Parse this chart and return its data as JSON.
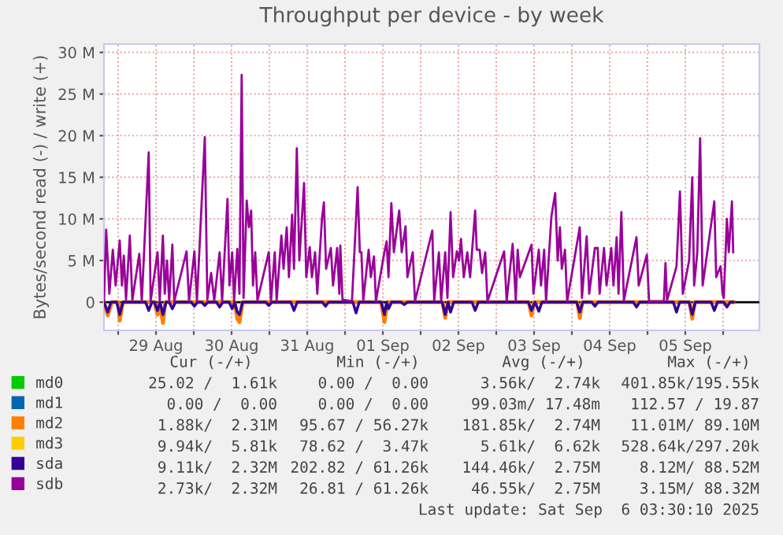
{
  "chart_data": {
    "type": "line",
    "title": "Throughput per device - by week",
    "ylabel": "Bytes/second read (-) / write (+)",
    "xlim": [
      "2025-08-28T19:30",
      "2025-09-06T11:30"
    ],
    "ylim": [
      -3.4,
      31
    ],
    "xticks": [
      {
        "value": "2025-08-29T00:00",
        "label": null
      },
      {
        "value": "2025-08-29T12:00",
        "label": "29 Aug"
      },
      {
        "value": "2025-08-30T00:00",
        "label": null
      },
      {
        "value": "2025-08-30T12:00",
        "label": "30 Aug"
      },
      {
        "value": "2025-08-31T00:00",
        "label": null
      },
      {
        "value": "2025-08-31T12:00",
        "label": "31 Aug"
      },
      {
        "value": "2025-09-01T00:00",
        "label": null
      },
      {
        "value": "2025-09-01T12:00",
        "label": "01 Sep"
      },
      {
        "value": "2025-09-02T00:00",
        "label": null
      },
      {
        "value": "2025-09-02T12:00",
        "label": "02 Sep"
      },
      {
        "value": "2025-09-03T00:00",
        "label": null
      },
      {
        "value": "2025-09-03T12:00",
        "label": "03 Sep"
      },
      {
        "value": "2025-09-04T00:00",
        "label": null
      },
      {
        "value": "2025-09-04T12:00",
        "label": "04 Sep"
      },
      {
        "value": "2025-09-05T00:00",
        "label": null
      },
      {
        "value": "2025-09-05T12:00",
        "label": "05 Sep"
      },
      {
        "value": "2025-09-06T00:00",
        "label": null
      }
    ],
    "yticks": [
      {
        "value": 0,
        "label": "0"
      },
      {
        "value": 5,
        "label": "5 M"
      },
      {
        "value": 10,
        "label": "10 M"
      },
      {
        "value": 15,
        "label": "15 M"
      },
      {
        "value": 20,
        "label": "20 M"
      },
      {
        "value": 25,
        "label": "25 M"
      },
      {
        "value": 30,
        "label": "30 M"
      }
    ],
    "grid": true,
    "legend": "bottom left",
    "line_style": "solid",
    "marker": "none",
    "series": [
      {
        "name": "md0",
        "color": "#00cc00"
      },
      {
        "name": "md1",
        "color": "#0066b3"
      },
      {
        "name": "md2",
        "color": "#ff8000",
        "x": [
          "2025-08-28T19:30",
          "2025-08-28T20:42",
          "2025-08-28T22:00",
          "2025-08-29T00:00",
          "2025-08-29T00:30",
          "2025-08-29T01:30",
          "2025-08-29T11:30",
          "2025-08-29T12:30",
          "2025-08-29T13:12",
          "2025-08-29T14:12",
          "2025-08-29T15:00",
          "2025-08-30T13:00",
          "2025-08-30T13:48",
          "2025-08-30T14:30",
          "2025-08-30T15:30",
          "2025-09-01T11:30",
          "2025-09-01T12:30",
          "2025-09-01T13:30",
          "2025-09-02T07:00",
          "2025-09-02T07:48",
          "2025-09-02T08:42",
          "2025-09-03T10:18",
          "2025-09-03T11:12",
          "2025-09-03T12:00",
          "2025-09-04T01:42",
          "2025-09-04T02:30",
          "2025-09-04T03:18",
          "2025-09-05T13:18",
          "2025-09-05T14:12",
          "2025-09-05T15:00",
          "2025-09-06T03:12"
        ],
        "values": [
          0,
          -1.6,
          0,
          0,
          -2.2,
          0,
          0,
          -1.5,
          0,
          -2.5,
          0,
          0,
          -2.0,
          -2.4,
          0,
          0,
          -2.4,
          0,
          0,
          -1.9,
          0,
          0,
          -1.6,
          0,
          0,
          -1.9,
          0,
          0,
          -2.0,
          0,
          0
        ]
      },
      {
        "name": "md3",
        "color": "#ffcc00"
      },
      {
        "name": "sda",
        "color": "#330099",
        "x": [
          "2025-08-28T19:30",
          "2025-08-28T20:42",
          "2025-08-28T21:42",
          "2025-08-28T23:30",
          "2025-08-29T00:30",
          "2025-08-29T01:30",
          "2025-08-29T08:42",
          "2025-08-29T09:42",
          "2025-08-29T10:42",
          "2025-08-29T11:30",
          "2025-08-29T12:30",
          "2025-08-29T13:18",
          "2025-08-29T14:12",
          "2025-08-29T15:12",
          "2025-08-29T16:12",
          "2025-08-29T17:12",
          "2025-08-29T18:12",
          "2025-08-29T23:12",
          "2025-08-30T00:12",
          "2025-08-30T01:12",
          "2025-08-30T02:30",
          "2025-08-30T03:30",
          "2025-08-30T04:30",
          "2025-08-30T07:12",
          "2025-08-30T08:12",
          "2025-08-30T09:12",
          "2025-08-30T11:12",
          "2025-08-30T12:12",
          "2025-08-30T13:00",
          "2025-08-30T13:48",
          "2025-08-30T14:30",
          "2025-08-30T15:30",
          "2025-08-30T22:48",
          "2025-08-30T23:48",
          "2025-08-31T00:48",
          "2025-08-31T06:48",
          "2025-08-31T07:48",
          "2025-08-31T08:48",
          "2025-08-31T16:48",
          "2025-08-31T17:48",
          "2025-08-31T18:48",
          "2025-09-01T02:30",
          "2025-09-01T03:30",
          "2025-09-01T04:30",
          "2025-09-01T11:30",
          "2025-09-01T12:30",
          "2025-09-01T13:12",
          "2025-09-01T13:48",
          "2025-09-01T14:48",
          "2025-09-01T17:48",
          "2025-09-01T18:48",
          "2025-09-01T19:48",
          "2025-09-02T06:48",
          "2025-09-02T07:48",
          "2025-09-02T08:42",
          "2025-09-02T09:30",
          "2025-09-02T10:30",
          "2025-09-02T16:18",
          "2025-09-02T17:18",
          "2025-09-02T18:18",
          "2025-09-03T10:12",
          "2025-09-03T11:12",
          "2025-09-03T12:18",
          "2025-09-03T13:30",
          "2025-09-03T14:30",
          "2025-09-04T01:30",
          "2025-09-04T02:30",
          "2025-09-04T03:30",
          "2025-09-04T06:18",
          "2025-09-04T07:18",
          "2025-09-04T08:18",
          "2025-09-04T19:30",
          "2025-09-04T20:30",
          "2025-09-04T21:30",
          "2025-09-05T08:12",
          "2025-09-05T09:12",
          "2025-09-05T10:12",
          "2025-09-05T13:12",
          "2025-09-05T14:12",
          "2025-09-05T15:12",
          "2025-09-05T20:12",
          "2025-09-05T21:12",
          "2025-09-05T22:12",
          "2025-09-06T00:12",
          "2025-09-06T01:12",
          "2025-09-06T02:12",
          "2025-09-06T03:12"
        ],
        "values": [
          0,
          -1.2,
          0,
          0,
          -1.5,
          0,
          0,
          -1.0,
          0,
          0,
          -1.0,
          0,
          -1.5,
          0,
          0,
          -0.8,
          0,
          0,
          -0.5,
          0,
          0,
          -0.4,
          0,
          0,
          -0.6,
          0,
          0,
          -0.8,
          0,
          -1.2,
          -1.5,
          0,
          0,
          -0.4,
          0,
          0,
          -1.0,
          0,
          0,
          -0.5,
          0,
          0,
          -1.3,
          0,
          0,
          -1.5,
          0,
          -0.8,
          0,
          0,
          -0.3,
          0,
          0,
          -1.5,
          0,
          -1.2,
          0,
          0,
          -1.0,
          0,
          0,
          -1.0,
          0,
          -1.1,
          0,
          0,
          -1.2,
          0,
          0,
          -0.5,
          0,
          0,
          -0.6,
          0,
          0,
          -1.2,
          0,
          0,
          -1.5,
          0,
          0,
          -1.0,
          0,
          0,
          -0.6,
          0,
          0
        ]
      },
      {
        "name": "sdb",
        "color": "#990099",
        "x": [
          "2025-08-28T19:30",
          "2025-08-28T20:12",
          "2025-08-28T21:12",
          "2025-08-28T22:18",
          "2025-08-28T23:12",
          "2025-08-29T00:30",
          "2025-08-29T01:12",
          "2025-08-29T01:48",
          "2025-08-29T02:30",
          "2025-08-29T03:42",
          "2025-08-29T04:30",
          "2025-08-29T06:42",
          "2025-08-29T07:30",
          "2025-08-29T09:42",
          "2025-08-29T10:18",
          "2025-08-29T12:30",
          "2025-08-29T13:12",
          "2025-08-29T14:12",
          "2025-08-29T14:48",
          "2025-08-29T15:30",
          "2025-08-29T16:12",
          "2025-08-29T17:12",
          "2025-08-29T17:48",
          "2025-08-29T21:42",
          "2025-08-29T22:30",
          "2025-08-30T00:12",
          "2025-08-30T01:00",
          "2025-08-30T03:30",
          "2025-08-30T04:18",
          "2025-08-30T05:30",
          "2025-08-30T06:30",
          "2025-08-30T08:12",
          "2025-08-30T09:00",
          "2025-08-30T10:42",
          "2025-08-30T11:18",
          "2025-08-30T12:12",
          "2025-08-30T12:48",
          "2025-08-30T13:48",
          "2025-08-30T14:30",
          "2025-08-30T15:12",
          "2025-08-30T15:48",
          "2025-08-30T16:48",
          "2025-08-30T17:30",
          "2025-08-30T18:12",
          "2025-08-30T18:48",
          "2025-08-30T19:30",
          "2025-08-30T20:12",
          "2025-08-30T23:48",
          "2025-08-31T00:30",
          "2025-08-31T01:42",
          "2025-08-31T02:18",
          "2025-08-31T03:48",
          "2025-08-31T04:30",
          "2025-08-31T05:30",
          "2025-08-31T06:12",
          "2025-08-31T07:12",
          "2025-08-31T07:48",
          "2025-08-31T08:42",
          "2025-08-31T09:30",
          "2025-08-31T11:00",
          "2025-08-31T11:42",
          "2025-08-31T12:48",
          "2025-08-31T13:30",
          "2025-08-31T14:30",
          "2025-08-31T15:12",
          "2025-08-31T16:42",
          "2025-08-31T17:18",
          "2025-08-31T18:00",
          "2025-08-31T19:30",
          "2025-08-31T20:12",
          "2025-08-31T21:30",
          "2025-08-31T22:12",
          "2025-08-31T22:30",
          "2025-08-31T23:12",
          "2025-09-01T02:12",
          "2025-09-01T04:00",
          "2025-09-01T04:42",
          "2025-09-01T05:12",
          "2025-09-01T05:48",
          "2025-09-01T07:30",
          "2025-09-01T08:12",
          "2025-09-01T09:12",
          "2025-09-01T09:48",
          "2025-09-01T12:30",
          "2025-09-01T13:12",
          "2025-09-01T13:48",
          "2025-09-01T14:42",
          "2025-09-01T15:30",
          "2025-09-01T17:12",
          "2025-09-01T18:00",
          "2025-09-01T19:12",
          "2025-09-01T19:48",
          "2025-09-01T21:30",
          "2025-09-01T22:12",
          "2025-09-02T03:42",
          "2025-09-02T04:18",
          "2025-09-02T05:48",
          "2025-09-02T06:30",
          "2025-09-02T07:48",
          "2025-09-02T08:30",
          "2025-09-02T09:30",
          "2025-09-02T10:18",
          "2025-09-02T11:30",
          "2025-09-02T12:12",
          "2025-09-02T12:48",
          "2025-09-02T13:42",
          "2025-09-02T14:48",
          "2025-09-02T15:42",
          "2025-09-02T17:18",
          "2025-09-02T17:48",
          "2025-09-02T18:42",
          "2025-09-02T19:30",
          "2025-09-02T20:30",
          "2025-09-02T21:12",
          "2025-09-03T02:30",
          "2025-09-03T03:18",
          "2025-09-03T05:12",
          "2025-09-03T06:12",
          "2025-09-03T06:48",
          "2025-09-03T07:30",
          "2025-09-03T11:12",
          "2025-09-03T11:48",
          "2025-09-03T13:30",
          "2025-09-03T14:12",
          "2025-09-03T15:12",
          "2025-09-03T15:48",
          "2025-09-03T17:30",
          "2025-09-03T18:42",
          "2025-09-03T19:30",
          "2025-09-03T20:12",
          "2025-09-03T20:48",
          "2025-09-03T21:48",
          "2025-09-03T22:30",
          "2025-09-04T02:30",
          "2025-09-04T03:12",
          "2025-09-04T04:42",
          "2025-09-04T05:30",
          "2025-09-04T07:18",
          "2025-09-04T08:12",
          "2025-09-04T08:48",
          "2025-09-04T10:12",
          "2025-09-04T11:00",
          "2025-09-04T12:30",
          "2025-09-04T13:12",
          "2025-09-04T14:12",
          "2025-09-04T14:48",
          "2025-09-04T15:42",
          "2025-09-04T16:30",
          "2025-09-04T20:30",
          "2025-09-04T21:12",
          "2025-09-04T23:48",
          "2025-09-05T00:30",
          "2025-09-05T05:12",
          "2025-09-05T05:42",
          "2025-09-05T06:12",
          "2025-09-05T09:12",
          "2025-09-05T10:18",
          "2025-09-05T11:12",
          "2025-09-05T13:12",
          "2025-09-05T14:12",
          "2025-09-05T14:48",
          "2025-09-05T15:48",
          "2025-09-05T16:42",
          "2025-09-05T17:30",
          "2025-09-05T21:12",
          "2025-09-05T21:48",
          "2025-09-05T23:12",
          "2025-09-05T23:48",
          "2025-09-06T00:12",
          "2025-09-06T01:12",
          "2025-09-06T01:48",
          "2025-09-06T02:48",
          "2025-09-06T03:12"
        ],
        "values": [
          0.1,
          8.7,
          1,
          6.3,
          2,
          7.4,
          2,
          5.6,
          0.3,
          8.0,
          0.2,
          5.8,
          0.1,
          18.0,
          0.1,
          6.0,
          0.2,
          8.0,
          1,
          5.0,
          0.1,
          6.9,
          0.1,
          6.1,
          0.1,
          6.1,
          0.1,
          19.8,
          0.3,
          3.5,
          0.2,
          6.0,
          0.1,
          12.4,
          2,
          6,
          0.2,
          6.4,
          1,
          27.3,
          0.5,
          12.2,
          9,
          11,
          2,
          6,
          0.2,
          6.0,
          0.1,
          6.0,
          0.2,
          8.0,
          4,
          9.0,
          3,
          10.5,
          4,
          18.5,
          5,
          14.3,
          3,
          6.6,
          3,
          6,
          1,
          10.1,
          12.0,
          4,
          6.5,
          2,
          6.5,
          1,
          6.8,
          0.3,
          0.1,
          13.8,
          6,
          6,
          0.2,
          6.3,
          3,
          5.5,
          0.1,
          6,
          7.3,
          3,
          11.9,
          6,
          11.0,
          6,
          9.1,
          3,
          6.0,
          0.1,
          8.6,
          0.2,
          6,
          0.1,
          6,
          0.5,
          10.8,
          3,
          6.1,
          5,
          7.6,
          3,
          6,
          3,
          11,
          6.3,
          6.3,
          3.5,
          6,
          0.1,
          6.1,
          0.1,
          7.0,
          0.2,
          6.3,
          3,
          6.9,
          1,
          6.3,
          2,
          6.3,
          0.1,
          10.3,
          13.1,
          5,
          9.0,
          4,
          6.3,
          0.1,
          9.0,
          0.5,
          7.9,
          1,
          6.5,
          6.5,
          1,
          6.5,
          2,
          6.5,
          2,
          7.8,
          1,
          10.8,
          0.2,
          7.8,
          2,
          5.7,
          0.1,
          0.1,
          4.7,
          0.2,
          4.3,
          13.3,
          1,
          5,
          15,
          2,
          6,
          19.7,
          2,
          12.1,
          3,
          4.3,
          1,
          0.5,
          10,
          6,
          12.1,
          6
        ]
      }
    ],
    "annotations": [
      "Cur (-/+)",
      "Min (-/+)",
      "Avg (-/+)",
      "Max (-/+)",
      "25.02 /  1.61k",
      "0.00 /  0.00",
      "3.56k/  2.74k",
      "401.85k/195.55k",
      "0.00 /  0.00",
      "0.00 /  0.00",
      "99.03m/ 17.48m",
      "112.57 / 19.87",
      "1.88k/  2.31M",
      "95.67 / 56.27k",
      "181.85k/  2.74M",
      "11.01M/ 89.10M",
      "9.94k/  5.81k",
      "78.62 /  3.47k",
      "5.61k/  6.62k",
      "528.64k/297.20k",
      "9.11k/  2.32M",
      "202.82 / 61.26k",
      "144.46k/  2.75M",
      "8.12M/ 88.52M",
      "2.73k/  2.32M",
      "26.81 / 61.26k",
      "46.55k/  2.75M",
      "3.15M/ 88.32M",
      "Last update: Sat Sep  6 03:30:10 2025"
    ]
  }
}
